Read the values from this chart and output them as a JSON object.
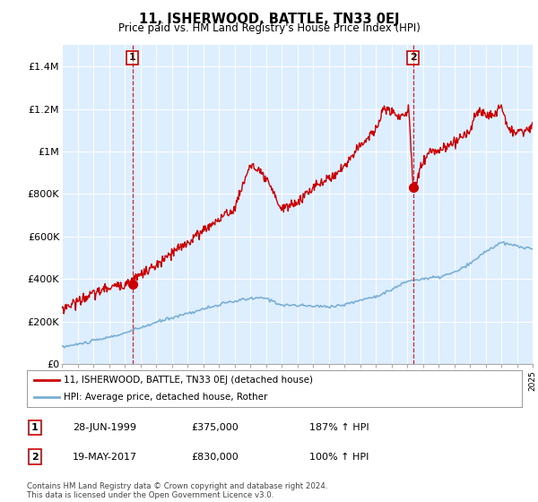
{
  "title": "11, ISHERWOOD, BATTLE, TN33 0EJ",
  "subtitle": "Price paid vs. HM Land Registry's House Price Index (HPI)",
  "legend_line1": "11, ISHERWOOD, BATTLE, TN33 0EJ (detached house)",
  "legend_line2": "HPI: Average price, detached house, Rother",
  "sale1_label": "1",
  "sale1_date": "28-JUN-1999",
  "sale1_price": "£375,000",
  "sale1_hpi": "187% ↑ HPI",
  "sale2_label": "2",
  "sale2_date": "19-MAY-2017",
  "sale2_price": "£830,000",
  "sale2_hpi": "100% ↑ HPI",
  "footer": "Contains HM Land Registry data © Crown copyright and database right 2024.\nThis data is licensed under the Open Government Licence v3.0.",
  "red_color": "#cc0000",
  "blue_color": "#7aafd4",
  "dashed_red": "#cc0000",
  "ylim_max": 1500000,
  "ylim_min": 0,
  "sale1_year": 1999.5,
  "sale1_value": 375000,
  "sale2_year": 2017.38,
  "sale2_value": 830000,
  "plot_bg_color": "#ddeeff",
  "background_color": "#ffffff",
  "grid_color": "#ffffff",
  "hpi_knots_x": [
    1995,
    1996,
    1997,
    1998,
    1999,
    2000,
    2001,
    2002,
    2003,
    2004,
    2005,
    2006,
    2007,
    2008,
    2009,
    2010,
    2011,
    2012,
    2013,
    2014,
    2015,
    2016,
    2017,
    2018,
    2019,
    2020,
    2021,
    2022,
    2023,
    2024,
    2025
  ],
  "hpi_knots_y": [
    80000,
    92000,
    108000,
    125000,
    145000,
    170000,
    195000,
    218000,
    238000,
    258000,
    278000,
    295000,
    308000,
    310000,
    278000,
    275000,
    272000,
    270000,
    278000,
    300000,
    318000,
    348000,
    390000,
    400000,
    408000,
    430000,
    470000,
    530000,
    570000,
    555000,
    540000
  ],
  "red_knots_x": [
    1995,
    1996,
    1997,
    1998,
    1999,
    2000,
    2001,
    2002,
    2003,
    2004,
    2005,
    2006,
    2007,
    2008,
    2009,
    2010,
    2011,
    2012,
    2013,
    2014,
    2015,
    2015.5,
    2016,
    2016.5,
    2017,
    2017.1,
    2017.38,
    2018,
    2018.5,
    2019,
    2020,
    2021,
    2021.5,
    2022,
    2022.5,
    2023,
    2023.5,
    2024,
    2024.5,
    2025
  ],
  "red_knots_y": [
    260000,
    295000,
    330000,
    360000,
    375000,
    420000,
    460000,
    520000,
    570000,
    630000,
    680000,
    730000,
    940000,
    870000,
    730000,
    760000,
    830000,
    870000,
    930000,
    1030000,
    1100000,
    1200000,
    1190000,
    1160000,
    1180000,
    1220000,
    830000,
    950000,
    1000000,
    1000000,
    1040000,
    1100000,
    1190000,
    1180000,
    1160000,
    1220000,
    1100000,
    1090000,
    1100000,
    1120000
  ]
}
